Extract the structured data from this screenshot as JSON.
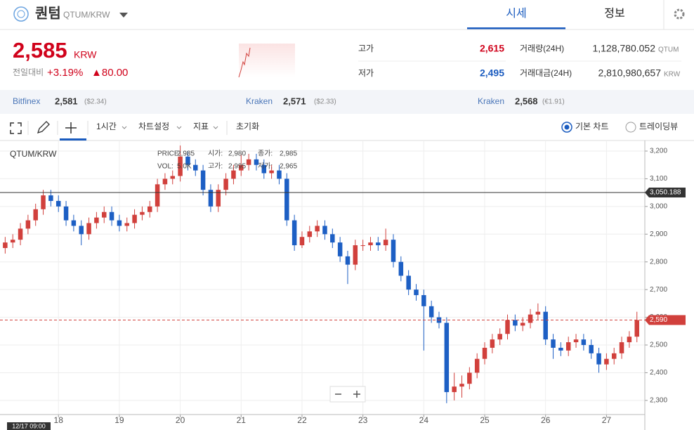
{
  "header": {
    "title": "퀀텀",
    "symbol": "QTUM/KRW",
    "tabs": [
      "시세",
      "정보"
    ]
  },
  "price": {
    "value": "2,585",
    "unit": "KRW",
    "change_label": "전일대비",
    "change_pct": "+3.19%",
    "change_abs": "▲80.00"
  },
  "stats": [
    {
      "label": "고가",
      "value": "2,615"
    },
    {
      "label": "저가",
      "value": "2,495"
    }
  ],
  "volume": [
    {
      "label": "거래량(24H)",
      "value": "1,128,780.052",
      "unit": "QTUM"
    },
    {
      "label": "거래대금(24H)",
      "value": "2,810,980,657",
      "unit": "KRW"
    }
  ],
  "exchanges": [
    {
      "name": "Bitfinex",
      "price": "2,581",
      "ref": "($2.34)"
    },
    {
      "name": "Kraken",
      "price": "2,571",
      "ref": "($2.33)"
    },
    {
      "name": "Kraken",
      "price": "2,568",
      "ref": "(€1.91)"
    }
  ],
  "toolbar": {
    "interval": "1시간",
    "items": [
      "차트설정",
      "지표",
      "초기화"
    ],
    "radios": [
      "기본 차트",
      "트레이딩뷰"
    ]
  },
  "chart_data": {
    "type": "candlestick",
    "label": "QTUM/KRW",
    "cursor_label": "12/17 09:00",
    "info": [
      [
        {
          "label": "PRICE:",
          "value": "2,985"
        },
        {
          "label": "시가:",
          "value": "2,980"
        },
        {
          "label": "종가:",
          "value": "2,985"
        }
      ],
      [
        {
          "label": "VOL:",
          "value": "5.0K"
        },
        {
          "label": "고가:",
          "value": "2,995"
        },
        {
          "label": "저가:",
          "value": "2,965"
        }
      ]
    ],
    "up_color": "#d1403c",
    "down_color": "#1d5fc4",
    "x": [
      17.125,
      17.25,
      17.375,
      17.5,
      17.625,
      17.75,
      17.875,
      18.0,
      18.125,
      18.25,
      18.375,
      18.5,
      18.625,
      18.75,
      18.875,
      19.0,
      19.125,
      19.25,
      19.375,
      19.5,
      19.625,
      19.75,
      19.875,
      20.0,
      20.125,
      20.25,
      20.375,
      20.5,
      20.625,
      20.75,
      20.875,
      21.0,
      21.125,
      21.25,
      21.375,
      21.5,
      21.625,
      21.75,
      21.875,
      22.0,
      22.125,
      22.25,
      22.375,
      22.5,
      22.625,
      22.75,
      22.875,
      23.0,
      23.125,
      23.25,
      23.375,
      23.5,
      23.625,
      23.75,
      23.875,
      24.0,
      24.125,
      24.25,
      24.375,
      24.5,
      24.625,
      24.75,
      24.875,
      25.0,
      25.125,
      25.25,
      25.375,
      25.5,
      25.625,
      25.75,
      25.875,
      26.0,
      26.125,
      26.25,
      26.375,
      26.5,
      26.625,
      26.75,
      26.875,
      27.0,
      27.125,
      27.25,
      27.375,
      27.5
    ],
    "open": [
      2850,
      2870,
      2880,
      2920,
      2950,
      2990,
      3040,
      3020,
      3000,
      2950,
      2930,
      2900,
      2940,
      2960,
      2980,
      2950,
      2930,
      2940,
      2970,
      2980,
      3000,
      3080,
      3100,
      3110,
      3180,
      3150,
      3130,
      3060,
      3000,
      3060,
      3100,
      3130,
      3150,
      3170,
      3150,
      3120,
      3130,
      3100,
      2950,
      2860,
      2890,
      2910,
      2930,
      2900,
      2870,
      2820,
      2790,
      2860,
      2860,
      2870,
      2860,
      2880,
      2800,
      2750,
      2700,
      2680,
      2640,
      2600,
      2580,
      2330,
      2350,
      2360,
      2400,
      2450,
      2490,
      2520,
      2540,
      2590,
      2570,
      2580,
      2610,
      2620,
      2520,
      2490,
      2480,
      2510,
      2520,
      2500,
      2470,
      2430,
      2450,
      2470,
      2510,
      2530
    ],
    "high": [
      2890,
      2900,
      2940,
      2970,
      3010,
      3060,
      3060,
      3040,
      3020,
      2970,
      2950,
      2960,
      2980,
      3000,
      3000,
      2970,
      2960,
      2990,
      3000,
      3020,
      3100,
      3120,
      3130,
      3220,
      3200,
      3170,
      3150,
      3080,
      3080,
      3120,
      3150,
      3190,
      3190,
      3190,
      3170,
      3150,
      3150,
      3120,
      2970,
      2910,
      2930,
      2950,
      2950,
      2920,
      2890,
      2840,
      2880,
      2880,
      2890,
      2890,
      2920,
      2900,
      2820,
      2770,
      2720,
      2700,
      2660,
      2620,
      2600,
      2400,
      2390,
      2420,
      2470,
      2510,
      2540,
      2560,
      2610,
      2610,
      2600,
      2630,
      2650,
      2640,
      2540,
      2510,
      2530,
      2540,
      2540,
      2520,
      2490,
      2470,
      2490,
      2530,
      2550,
      2620
    ],
    "low": [
      2830,
      2850,
      2860,
      2900,
      2930,
      2970,
      3000,
      2980,
      2930,
      2910,
      2860,
      2880,
      2920,
      2940,
      2930,
      2910,
      2910,
      2920,
      2950,
      2960,
      2980,
      3060,
      3080,
      3090,
      3130,
      3110,
      3040,
      2980,
      2980,
      3040,
      3080,
      3110,
      3130,
      3130,
      3100,
      3100,
      3080,
      2930,
      2840,
      2850,
      2870,
      2890,
      2880,
      2850,
      2800,
      2720,
      2770,
      2840,
      2840,
      2840,
      2840,
      2780,
      2730,
      2680,
      2660,
      2480,
      2580,
      2560,
      2290,
      2300,
      2310,
      2340,
      2380,
      2430,
      2470,
      2500,
      2520,
      2550,
      2550,
      2560,
      2590,
      2500,
      2450,
      2460,
      2460,
      2490,
      2480,
      2450,
      2400,
      2410,
      2430,
      2450,
      2490,
      2510
    ],
    "close": [
      2870,
      2880,
      2920,
      2950,
      2990,
      3040,
      3020,
      3000,
      2950,
      2930,
      2900,
      2940,
      2960,
      2980,
      2950,
      2930,
      2940,
      2970,
      2980,
      3000,
      3080,
      3100,
      3110,
      3180,
      3150,
      3130,
      3060,
      3000,
      3060,
      3100,
      3130,
      3150,
      3170,
      3150,
      3120,
      3130,
      3100,
      2950,
      2860,
      2890,
      2910,
      2930,
      2900,
      2870,
      2820,
      2790,
      2860,
      2860,
      2870,
      2860,
      2880,
      2800,
      2750,
      2700,
      2680,
      2640,
      2600,
      2580,
      2330,
      2350,
      2360,
      2400,
      2450,
      2490,
      2520,
      2540,
      2590,
      2570,
      2580,
      2610,
      2620,
      2520,
      2490,
      2480,
      2510,
      2520,
      2500,
      2470,
      2430,
      2450,
      2470,
      2510,
      2530,
      2590
    ],
    "xlim": [
      17.04,
      27.63
    ],
    "xticks": [
      18,
      19,
      20,
      21,
      22,
      23,
      24,
      25,
      26,
      27
    ],
    "ylim": [
      2249,
      3238
    ],
    "yticks": [
      {
        "value": 2300,
        "label": "2,300"
      },
      {
        "value": 2400,
        "label": "2,400"
      },
      {
        "value": 2500,
        "label": "2,500"
      },
      {
        "value": 2600,
        "label": "2,600"
      },
      {
        "value": 2700,
        "label": "2,700"
      },
      {
        "value": 2800,
        "label": "2,800"
      },
      {
        "value": 2900,
        "label": "2,900"
      },
      {
        "value": 3000,
        "label": "3,000"
      },
      {
        "value": 3100,
        "label": "3,100"
      },
      {
        "value": 3200,
        "label": "3,200"
      }
    ],
    "grid": true,
    "price_lines": [
      {
        "value": 3050.188,
        "label": "3,050.188",
        "color": "#333333",
        "dashed": false
      },
      {
        "value": 2590,
        "label": "2,590",
        "color": "#d1403c",
        "dashed": true
      }
    ]
  }
}
